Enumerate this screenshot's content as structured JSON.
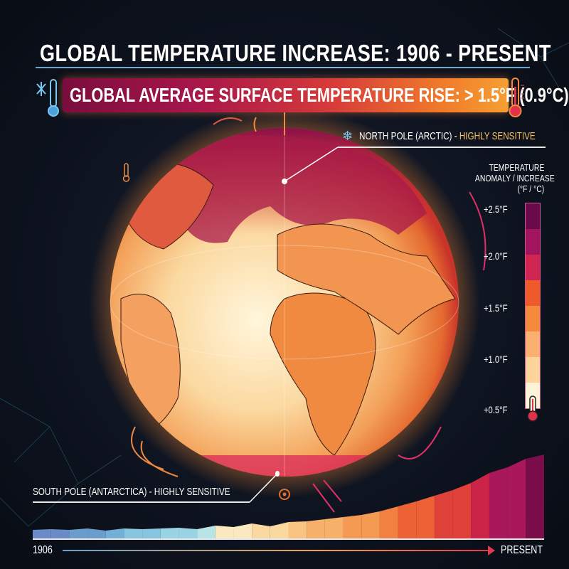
{
  "title": "GLOBAL TEMPERATURE INCREASE: 1906 - PRESENT",
  "banner": {
    "text": "GLOBAL AVERAGE SURFACE TEMPERATURE RISE: > 1.5°F (0.9°C)",
    "left_icon": "snowflake-thermometer-cold-icon",
    "right_icon": "thermometer-hot-icon"
  },
  "annotations": {
    "north_pole_prefix": "NORTH POLE (ARCTIC) - ",
    "north_pole_suffix": "HIGHLY SENSITIVE",
    "south_pole": "SOUTH POLE (ANTARCTICA) - HIGHLY SENSITIVE"
  },
  "legend": {
    "title_line1": "TEMPERATURE",
    "title_line2": "ANOMALY / INCREASE",
    "title_line3": "(°F / °C)",
    "ticks": [
      "+2.5°F",
      "+2.0°F",
      "+1.5°F",
      "+1.0°F",
      "+0.5°F"
    ],
    "colors": [
      "#6b0a4a",
      "#a3145e",
      "#d02550",
      "#ef5a2a",
      "#f68a3c",
      "#f9b070",
      "#fcd49a",
      "#fdf3d6"
    ]
  },
  "timeline": {
    "start": "1906",
    "end": "PRESENT"
  },
  "colors": {
    "cold": "#5fa8d8",
    "hot": "#c8124e",
    "accent": "#f07a2a"
  }
}
